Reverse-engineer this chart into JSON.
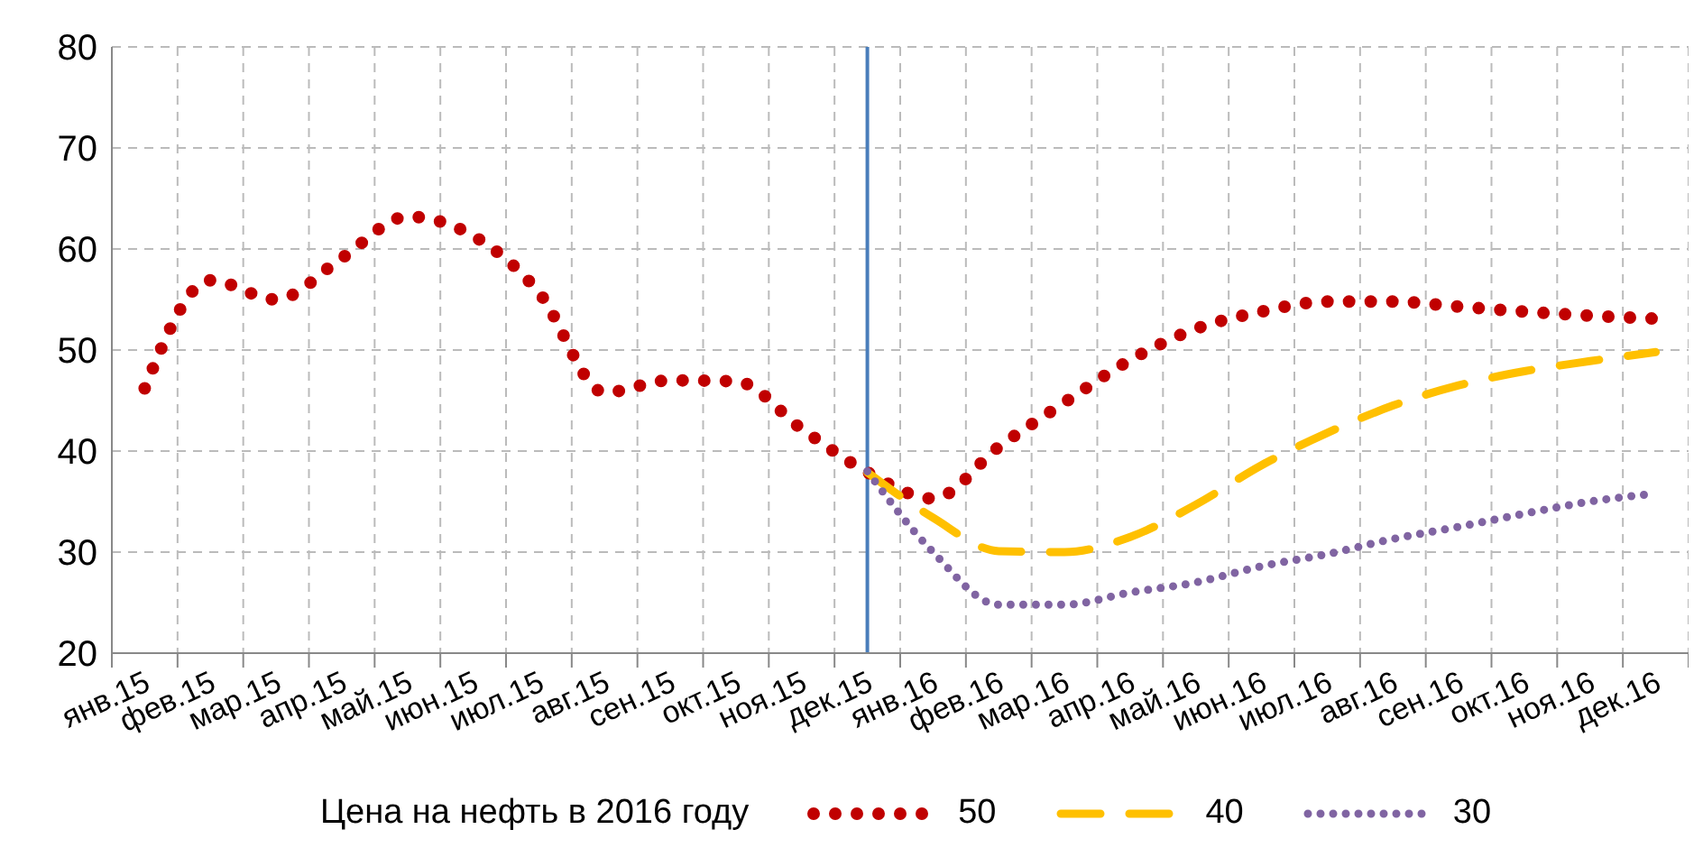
{
  "chart_data": {
    "type": "line",
    "categories": [
      "янв.15",
      "фев.15",
      "мар.15",
      "апр.15",
      "май.15",
      "июн.15",
      "июл.15",
      "авг.15",
      "сен.15",
      "окт.15",
      "ноя.15",
      "дек.15",
      "янв.16",
      "фев.16",
      "мар.16",
      "апр.16",
      "май.16",
      "июн.16",
      "июл.16",
      "авг.16",
      "сен.16",
      "окт.16",
      "ноя.16",
      "дек.16"
    ],
    "series": [
      {
        "name": "50",
        "color": "#c00000",
        "line_style": "dotted",
        "values": [
          46.2,
          56.9,
          55.0,
          59.1,
          63.2,
          61.3,
          55.7,
          45.8,
          47.0,
          46.9,
          42.2,
          37.9,
          35.3,
          40.4,
          44.8,
          49.0,
          52.1,
          53.8,
          54.8,
          54.8,
          54.3,
          53.8,
          53.4,
          53.1
        ]
      },
      {
        "name": "40",
        "color": "#ffc000",
        "line_style": "dashed",
        "values": [
          null,
          null,
          null,
          null,
          null,
          null,
          null,
          null,
          null,
          null,
          null,
          37.9,
          33.4,
          30.1,
          30.0,
          31.5,
          34.7,
          38.6,
          41.8,
          44.5,
          46.5,
          47.9,
          48.9,
          49.8
        ]
      },
      {
        "name": "30",
        "color": "#8064a2",
        "line_style": "dotted",
        "values": [
          null,
          null,
          null,
          null,
          null,
          null,
          null,
          null,
          null,
          null,
          null,
          38.0,
          30.0,
          24.8,
          24.8,
          26.0,
          27.0,
          28.6,
          29.8,
          31.3,
          32.5,
          33.8,
          35.0,
          35.8
        ]
      }
    ],
    "ylim": [
      20,
      80
    ],
    "yticks": [
      20,
      30,
      40,
      50,
      60,
      70,
      80
    ],
    "grid": true,
    "legend": "bottom",
    "legend_title": "Цена на нефть в 2016 году",
    "marker": "none",
    "ref_lines": [
      {
        "axis": "x",
        "value": "дек.15",
        "color": "#4a7ebb"
      }
    ]
  }
}
